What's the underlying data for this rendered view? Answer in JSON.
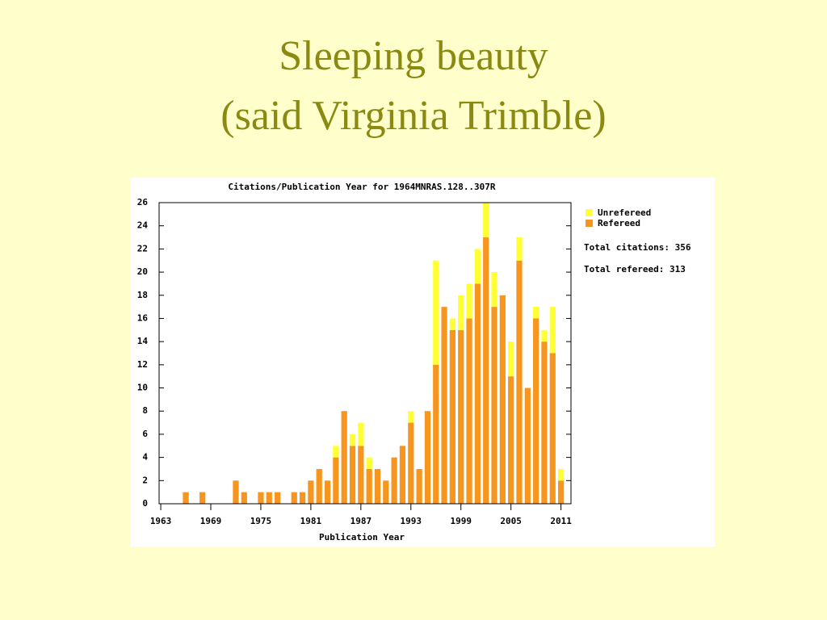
{
  "slide": {
    "title_lines": [
      "Sleeping beauty",
      "(said Virginia Trimble)"
    ]
  },
  "chart_data": {
    "type": "stacked-bar",
    "title": "Citations/Publication Year for 1964MNRAS.128..307R",
    "x_label": "Publication Year",
    "x": [
      1966,
      1968,
      1972,
      1973,
      1975,
      1976,
      1977,
      1979,
      1980,
      1981,
      1982,
      1983,
      1984,
      1985,
      1986,
      1987,
      1988,
      1989,
      1990,
      1991,
      1992,
      1993,
      1994,
      1995,
      1996,
      1997,
      1998,
      1999,
      2000,
      2001,
      2002,
      2003,
      2004,
      2005,
      2006,
      2007,
      2008,
      2009,
      2010,
      2011
    ],
    "series": [
      {
        "name": "Unrefereed",
        "color": "#ffff33",
        "values": [
          0,
          0,
          0,
          0,
          0,
          0,
          0,
          0,
          0,
          0,
          0,
          0,
          1,
          0,
          1,
          2,
          1,
          0,
          0,
          0,
          0,
          1,
          0,
          0,
          9,
          0,
          1,
          3,
          3,
          3,
          3,
          3,
          0,
          3,
          2,
          0,
          1,
          1,
          4,
          1
        ]
      },
      {
        "name": "Refereed",
        "color": "#f7961e",
        "values": [
          1,
          1,
          2,
          1,
          1,
          1,
          1,
          1,
          1,
          2,
          3,
          2,
          4,
          8,
          5,
          5,
          3,
          3,
          2,
          4,
          5,
          7,
          3,
          8,
          12,
          17,
          15,
          15,
          16,
          19,
          23,
          17,
          18,
          11,
          21,
          10,
          16,
          14,
          13,
          2
        ]
      }
    ],
    "annotations": [
      "Total citations: 356",
      "Total refereed: 313"
    ],
    "xlim": [
      1962.8,
      2012.2
    ],
    "xticks": [
      1963,
      1969,
      1975,
      1981,
      1987,
      1993,
      1999,
      2005,
      2011
    ],
    "ylim": [
      0,
      26
    ],
    "yticks": [
      0,
      2,
      4,
      6,
      8,
      10,
      12,
      14,
      16,
      18,
      20,
      22,
      24,
      26
    ],
    "grid": false
  }
}
